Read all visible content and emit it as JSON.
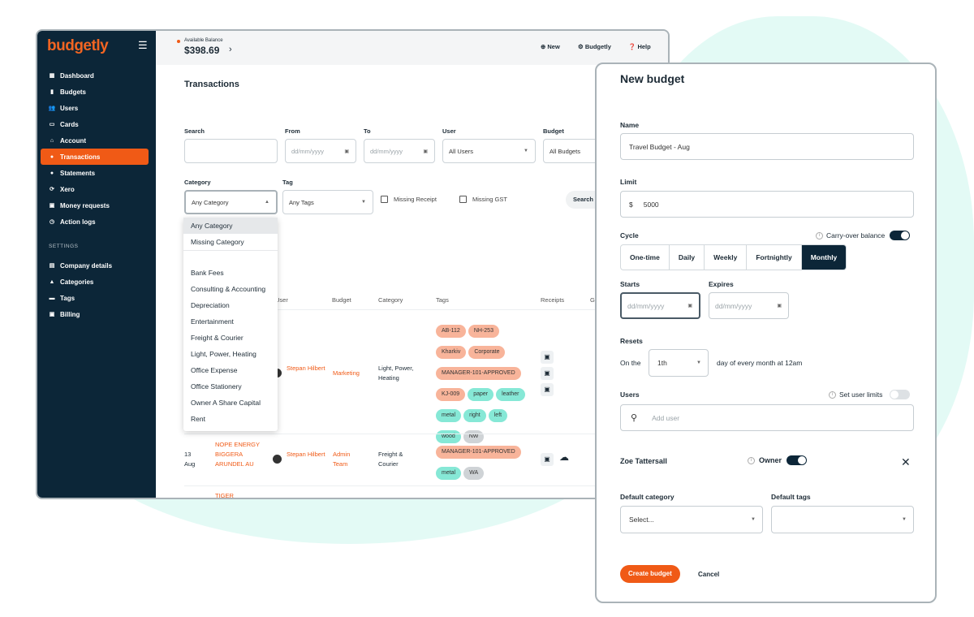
{
  "app": {
    "logo": "budgetly",
    "balance_label": "Available Balance",
    "balance": "$398.69"
  },
  "topbar": {
    "new": "New",
    "org": "Budgetly",
    "help": "Help"
  },
  "sidebar": {
    "items": [
      {
        "label": "Dashboard",
        "icon": "dashboard-icon"
      },
      {
        "label": "Budgets",
        "icon": "bar-chart-icon"
      },
      {
        "label": "Users",
        "icon": "users-icon"
      },
      {
        "label": "Cards",
        "icon": "card-icon"
      },
      {
        "label": "Account",
        "icon": "bank-icon"
      },
      {
        "label": "Transactions",
        "icon": "dollar-icon",
        "active": true
      },
      {
        "label": "Statements",
        "icon": "dollar-icon"
      },
      {
        "label": "Xero",
        "icon": "sync-icon"
      },
      {
        "label": "Money requests",
        "icon": "wallet-icon"
      },
      {
        "label": "Action logs",
        "icon": "history-icon"
      }
    ],
    "settings_label": "SETTINGS",
    "settings": [
      {
        "label": "Company details"
      },
      {
        "label": "Categories"
      },
      {
        "label": "Tags"
      },
      {
        "label": "Billing"
      }
    ]
  },
  "page": {
    "title": "Transactions"
  },
  "filters": {
    "search_label": "Search",
    "from_label": "From",
    "to_label": "To",
    "user_label": "User",
    "budget_label": "Budget",
    "date_placeholder": "dd/mm/yyyy",
    "user_value": "All Users",
    "budget_value": "All Budgets",
    "category_label": "Category",
    "category_value": "Any Category",
    "tag_label": "Tag",
    "tag_value": "Any Tags",
    "missing_receipt": "Missing Receipt",
    "missing_gst": "Missing GST",
    "search_button": "Search"
  },
  "category_options": [
    "Any Category",
    "Missing Category",
    "Bank Fees",
    "Consulting & Accounting",
    "Depreciation",
    "Entertainment",
    "Freight & Courier",
    "Light, Power, Heating",
    "Office Expense",
    "Office Stationery",
    "Owner A Share Capital",
    "Rent"
  ],
  "table": {
    "headers": [
      "User",
      "Budget",
      "Category",
      "Tags",
      "Receipts",
      "G"
    ],
    "rows": [
      {
        "date": "",
        "merchant": "",
        "user": "Stepan Hilbert",
        "budget": "Marketing",
        "category": "Light, Power, Heating",
        "tags": [
          [
            "AB-112",
            "o"
          ],
          [
            "NH-253",
            "o"
          ],
          [
            "Kharkiv",
            "o"
          ],
          [
            "Corporate",
            "o"
          ],
          [
            "MANAGER-101-APPROVED",
            "o"
          ],
          [
            "KJ-009",
            "o"
          ],
          [
            "paper",
            "g"
          ],
          [
            "leather",
            "g"
          ],
          [
            "metal",
            "g"
          ],
          [
            "right",
            "g"
          ],
          [
            "left",
            "g"
          ],
          [
            "wood",
            "g"
          ],
          [
            "NW",
            "n"
          ]
        ]
      },
      {
        "date": "13 Aug",
        "merchant": "NOPE ENERGY BIGGERA ARUNDEL AU",
        "user": "Stepan Hilbert",
        "budget": "Admin Team",
        "category": "Freight & Courier",
        "tags": [
          [
            "MANAGER-101-APPROVED",
            "o"
          ],
          [
            "metal",
            "g"
          ],
          [
            "WA",
            "n"
          ]
        ]
      },
      {
        "merchant": "TIGER"
      }
    ]
  },
  "modal": {
    "title": "New budget",
    "name_label": "Name",
    "name_value": "Travel Budget - Aug",
    "limit_label": "Limit",
    "currency": "$",
    "limit_value": "5000",
    "cycle_label": "Cycle",
    "carry_over": "Carry-over balance",
    "carry_over_on": true,
    "cycles": [
      "One-time",
      "Daily",
      "Weekly",
      "Fortnightly",
      "Monthly"
    ],
    "cycle_selected": "Monthly",
    "starts_label": "Starts",
    "expires_label": "Expires",
    "date_placeholder": "dd/mm/yyyy",
    "resets_label": "Resets",
    "on_the": "On the",
    "reset_day": "1th",
    "reset_suffix": "day of every month at 12am",
    "users_label": "Users",
    "user_limits": "Set user limits",
    "user_limits_on": false,
    "add_user_placeholder": "Add user",
    "member_name": "Zoe Tattersall",
    "owner_label": "Owner",
    "owner_on": true,
    "default_category_label": "Default category",
    "default_category_value": "Select...",
    "default_tags_label": "Default tags",
    "create": "Create budget",
    "cancel": "Cancel"
  },
  "colors": {
    "brand": "#f05a16",
    "navy": "#0c2638",
    "tag_orange": "#f8b49a",
    "tag_green": "#86e8d6"
  }
}
